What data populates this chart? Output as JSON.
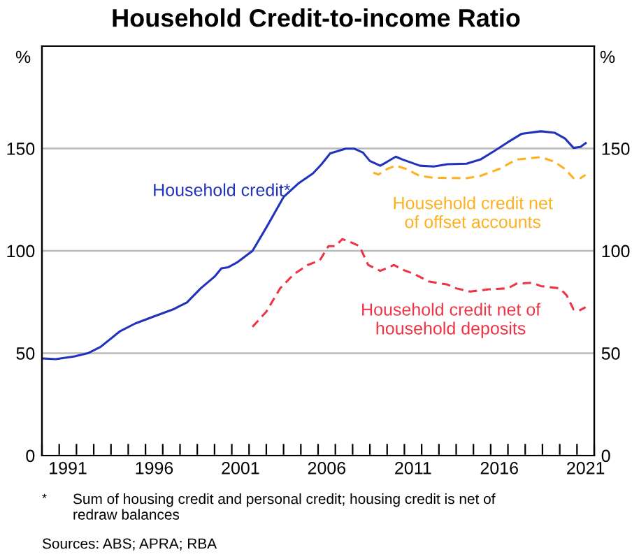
{
  "chart_data": {
    "type": "line",
    "title": "Household Credit-to-income Ratio",
    "ylabel": "%",
    "y2label": "%",
    "xlim": [
      1990,
      2022
    ],
    "xticks": [
      {
        "value": 1990,
        "label": null
      },
      {
        "value": 1991,
        "label": null
      },
      {
        "value": 1991.5,
        "label": "1991"
      },
      {
        "value": 1992,
        "label": null
      },
      {
        "value": 1993,
        "label": null
      },
      {
        "value": 1994,
        "label": null
      },
      {
        "value": 1995,
        "label": null
      },
      {
        "value": 1996,
        "label": null
      },
      {
        "value": 1996.5,
        "label": "1996"
      },
      {
        "value": 1997,
        "label": null
      },
      {
        "value": 1998,
        "label": null
      },
      {
        "value": 1999,
        "label": null
      },
      {
        "value": 2000,
        "label": null
      },
      {
        "value": 2001,
        "label": null
      },
      {
        "value": 2001.5,
        "label": "2001"
      },
      {
        "value": 2002,
        "label": null
      },
      {
        "value": 2003,
        "label": null
      },
      {
        "value": 2004,
        "label": null
      },
      {
        "value": 2005,
        "label": null
      },
      {
        "value": 2006,
        "label": null
      },
      {
        "value": 2006.5,
        "label": "2006"
      },
      {
        "value": 2007,
        "label": null
      },
      {
        "value": 2008,
        "label": null
      },
      {
        "value": 2009,
        "label": null
      },
      {
        "value": 2010,
        "label": null
      },
      {
        "value": 2011,
        "label": null
      },
      {
        "value": 2011.5,
        "label": "2011"
      },
      {
        "value": 2012,
        "label": null
      },
      {
        "value": 2013,
        "label": null
      },
      {
        "value": 2014,
        "label": null
      },
      {
        "value": 2015,
        "label": null
      },
      {
        "value": 2016,
        "label": null
      },
      {
        "value": 2016.5,
        "label": "2016"
      },
      {
        "value": 2017,
        "label": null
      },
      {
        "value": 2018,
        "label": null
      },
      {
        "value": 2019,
        "label": null
      },
      {
        "value": 2020,
        "label": null
      },
      {
        "value": 2021,
        "label": null
      },
      {
        "value": 2021.5,
        "label": "2021"
      },
      {
        "value": 2022,
        "label": null
      }
    ],
    "ylim": [
      0,
      200
    ],
    "yticks": [
      0,
      50,
      100,
      150
    ],
    "y2lim": [
      0,
      200
    ],
    "y2ticks": [
      0,
      50,
      100,
      150
    ],
    "grid": "y",
    "legend": false,
    "series": [
      {
        "name": "Household credit*",
        "color": "#2233bb",
        "line_style": "solid",
        "x": [
          1990.1,
          1990.8,
          1991.9,
          1992.7,
          1993.4,
          1994.5,
          1995.4,
          1996.5,
          1997.6,
          1998.4,
          1999.2,
          2000.0,
          2000.4,
          2000.8,
          2001.3,
          2002.2,
          2003.0,
          2004.0,
          2004.9,
          2005.7,
          2006.2,
          2006.7,
          2007.6,
          2008.1,
          2008.6,
          2009.0,
          2009.6,
          2010.0,
          2010.5,
          2010.9,
          2011.9,
          2012.7,
          2013.5,
          2014.6,
          2015.4,
          2016.2,
          2017.0,
          2017.8,
          2018.9,
          2019.7,
          2020.3,
          2020.8,
          2021.2,
          2021.5
        ],
        "values": [
          47.4,
          47.1,
          48.5,
          50.1,
          53.1,
          60.6,
          64.5,
          68,
          71.4,
          74.8,
          81.7,
          87.4,
          91.5,
          92,
          94.3,
          100,
          111.4,
          126.3,
          133.2,
          137.8,
          142.3,
          147.6,
          149.9,
          149.9,
          148,
          143.9,
          141.6,
          143.5,
          146,
          144.6,
          141.6,
          141.2,
          142.3,
          142.6,
          144.6,
          148.7,
          153.1,
          157.2,
          158.4,
          157.7,
          154.9,
          150.3,
          150.8,
          152.6
        ]
      },
      {
        "name": "Household credit net of offset accounts",
        "color": "#ffb020",
        "line_style": "dashed",
        "x": [
          2009.2,
          2009.5,
          2010.0,
          2010.5,
          2011.1,
          2011.9,
          2012.7,
          2014.6,
          2015.4,
          2016.5,
          2017.5,
          2018.9,
          2019.7,
          2020.3,
          2020.8,
          2021.2,
          2021.5
        ],
        "values": [
          138.2,
          137.3,
          140,
          141.6,
          140,
          136.6,
          135.7,
          135.5,
          136.6,
          140,
          144.6,
          145.8,
          143.5,
          140,
          135.5,
          135.5,
          137.1
        ]
      },
      {
        "name": "Household credit net of household deposits",
        "color": "#ee3344",
        "line_style": "dashed",
        "x": [
          2002.2,
          2003.0,
          2003.8,
          2004.6,
          2005.4,
          2006.1,
          2006.6,
          2007.0,
          2007.4,
          2007.8,
          2008.4,
          2008.9,
          2009.6,
          2010.4,
          2010.9,
          2011.6,
          2012.4,
          2013.5,
          2014.0,
          2014.8,
          2015.9,
          2017.0,
          2017.5,
          2018.4,
          2018.9,
          2020.0,
          2020.4,
          2020.8,
          2021.1,
          2021.5
        ],
        "values": [
          62.9,
          70.3,
          81.7,
          88.6,
          93.1,
          95.4,
          102.3,
          102.3,
          105.7,
          104.6,
          102.3,
          93.1,
          90.2,
          93.1,
          90.8,
          88.6,
          85.1,
          83.5,
          81.7,
          80.1,
          81.2,
          81.7,
          84,
          84.4,
          82.8,
          81.7,
          78.3,
          71.4,
          70.7,
          72.5
        ]
      }
    ],
    "annotations": [
      "*",
      "Sum of housing credit and personal credit; housing credit is net of redraw balances",
      "Sources: ABS; APRA; RBA"
    ]
  }
}
